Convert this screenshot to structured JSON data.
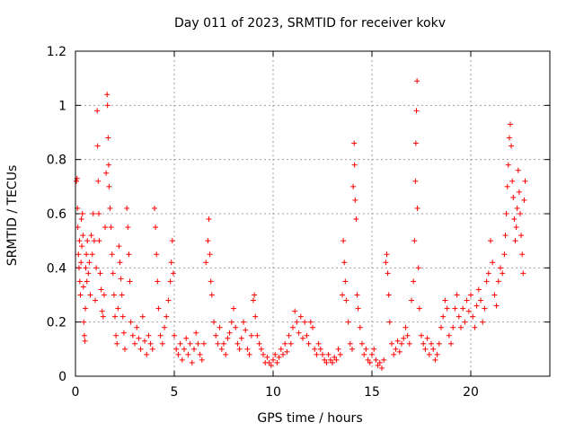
{
  "chart_data": {
    "type": "scatter",
    "title": "Day 011 of 2023, SRMTID for receiver kokv",
    "xlabel": "GPS time / hours",
    "ylabel": "SRMTID / TECUs",
    "xlim": [
      0,
      24
    ],
    "ylim": [
      0,
      1.2
    ],
    "xticks": [
      0,
      5,
      10,
      15,
      20
    ],
    "xtick_labels": [
      "0",
      "5",
      "10",
      "15",
      "20"
    ],
    "yticks": [
      0,
      0.2,
      0.4,
      0.6,
      0.8,
      1.0,
      1.2
    ],
    "ytick_labels": [
      "0",
      "0.2",
      "0.4",
      "0.6",
      "0.8",
      "1",
      "1.2"
    ],
    "grid": true,
    "marker": "+",
    "marker_color": "#ff0000",
    "series": [
      {
        "name": "kokv",
        "points": [
          [
            0.05,
            0.72
          ],
          [
            0.08,
            0.73
          ],
          [
            0.1,
            0.62
          ],
          [
            0.12,
            0.55
          ],
          [
            0.15,
            0.45
          ],
          [
            0.18,
            0.4
          ],
          [
            0.2,
            0.5
          ],
          [
            0.22,
            0.35
          ],
          [
            0.25,
            0.3
          ],
          [
            0.28,
            0.42
          ],
          [
            0.3,
            0.58
          ],
          [
            0.32,
            0.48
          ],
          [
            0.35,
            0.6
          ],
          [
            0.38,
            0.52
          ],
          [
            0.4,
            0.33
          ],
          [
            0.42,
            0.2
          ],
          [
            0.45,
            0.15
          ],
          [
            0.48,
            0.13
          ],
          [
            0.5,
            0.25
          ],
          [
            0.52,
            0.4
          ],
          [
            0.55,
            0.45
          ],
          [
            0.58,
            0.35
          ],
          [
            0.6,
            0.5
          ],
          [
            0.65,
            0.38
          ],
          [
            0.7,
            0.42
          ],
          [
            0.75,
            0.3
          ],
          [
            0.8,
            0.52
          ],
          [
            0.85,
            0.45
          ],
          [
            0.9,
            0.6
          ],
          [
            0.95,
            0.5
          ],
          [
            1.0,
            0.28
          ],
          [
            1.05,
            0.4
          ],
          [
            1.1,
            0.98
          ],
          [
            1.12,
            0.85
          ],
          [
            1.15,
            0.72
          ],
          [
            1.18,
            0.6
          ],
          [
            1.2,
            0.5
          ],
          [
            1.25,
            0.38
          ],
          [
            1.3,
            0.32
          ],
          [
            1.35,
            0.24
          ],
          [
            1.4,
            0.22
          ],
          [
            1.45,
            0.3
          ],
          [
            1.5,
            0.55
          ],
          [
            1.55,
            0.75
          ],
          [
            1.6,
            1.04
          ],
          [
            1.62,
            1.0
          ],
          [
            1.65,
            0.88
          ],
          [
            1.68,
            0.78
          ],
          [
            1.7,
            0.7
          ],
          [
            1.75,
            0.62
          ],
          [
            1.8,
            0.55
          ],
          [
            1.85,
            0.45
          ],
          [
            1.9,
            0.38
          ],
          [
            1.95,
            0.3
          ],
          [
            2.0,
            0.22
          ],
          [
            2.05,
            0.15
          ],
          [
            2.1,
            0.12
          ],
          [
            2.15,
            0.25
          ],
          [
            2.2,
            0.48
          ],
          [
            2.25,
            0.42
          ],
          [
            2.3,
            0.36
          ],
          [
            2.35,
            0.3
          ],
          [
            2.4,
            0.22
          ],
          [
            2.45,
            0.16
          ],
          [
            2.5,
            0.1
          ],
          [
            2.6,
            0.62
          ],
          [
            2.65,
            0.55
          ],
          [
            2.7,
            0.45
          ],
          [
            2.75,
            0.35
          ],
          [
            2.8,
            0.2
          ],
          [
            2.9,
            0.15
          ],
          [
            3.0,
            0.12
          ],
          [
            3.1,
            0.18
          ],
          [
            3.2,
            0.14
          ],
          [
            3.3,
            0.1
          ],
          [
            3.4,
            0.22
          ],
          [
            3.5,
            0.13
          ],
          [
            3.6,
            0.08
          ],
          [
            3.7,
            0.15
          ],
          [
            3.8,
            0.12
          ],
          [
            3.9,
            0.1
          ],
          [
            4.0,
            0.62
          ],
          [
            4.05,
            0.55
          ],
          [
            4.1,
            0.45
          ],
          [
            4.15,
            0.35
          ],
          [
            4.2,
            0.25
          ],
          [
            4.3,
            0.15
          ],
          [
            4.4,
            0.12
          ],
          [
            4.5,
            0.18
          ],
          [
            4.6,
            0.22
          ],
          [
            4.7,
            0.28
          ],
          [
            4.8,
            0.35
          ],
          [
            4.85,
            0.42
          ],
          [
            4.9,
            0.5
          ],
          [
            4.95,
            0.38
          ],
          [
            5.0,
            0.15
          ],
          [
            5.1,
            0.1
          ],
          [
            5.2,
            0.08
          ],
          [
            5.3,
            0.12
          ],
          [
            5.4,
            0.06
          ],
          [
            5.5,
            0.1
          ],
          [
            5.6,
            0.14
          ],
          [
            5.7,
            0.08
          ],
          [
            5.8,
            0.12
          ],
          [
            5.9,
            0.05
          ],
          [
            6.0,
            0.1
          ],
          [
            6.1,
            0.16
          ],
          [
            6.2,
            0.12
          ],
          [
            6.3,
            0.08
          ],
          [
            6.4,
            0.06
          ],
          [
            6.5,
            0.12
          ],
          [
            6.6,
            0.42
          ],
          [
            6.7,
            0.5
          ],
          [
            6.75,
            0.58
          ],
          [
            6.8,
            0.45
          ],
          [
            6.85,
            0.35
          ],
          [
            6.9,
            0.3
          ],
          [
            7.0,
            0.2
          ],
          [
            7.1,
            0.15
          ],
          [
            7.2,
            0.12
          ],
          [
            7.3,
            0.18
          ],
          [
            7.4,
            0.1
          ],
          [
            7.5,
            0.12
          ],
          [
            7.6,
            0.08
          ],
          [
            7.7,
            0.14
          ],
          [
            7.8,
            0.16
          ],
          [
            7.9,
            0.2
          ],
          [
            8.0,
            0.25
          ],
          [
            8.1,
            0.18
          ],
          [
            8.2,
            0.12
          ],
          [
            8.3,
            0.1
          ],
          [
            8.4,
            0.14
          ],
          [
            8.5,
            0.2
          ],
          [
            8.6,
            0.17
          ],
          [
            8.7,
            0.1
          ],
          [
            8.8,
            0.08
          ],
          [
            8.9,
            0.15
          ],
          [
            9.0,
            0.28
          ],
          [
            9.05,
            0.3
          ],
          [
            9.1,
            0.22
          ],
          [
            9.2,
            0.15
          ],
          [
            9.3,
            0.12
          ],
          [
            9.4,
            0.1
          ],
          [
            9.5,
            0.08
          ],
          [
            9.6,
            0.05
          ],
          [
            9.7,
            0.07
          ],
          [
            9.8,
            0.05
          ],
          [
            9.9,
            0.04
          ],
          [
            10.0,
            0.06
          ],
          [
            10.1,
            0.08
          ],
          [
            10.2,
            0.05
          ],
          [
            10.3,
            0.07
          ],
          [
            10.4,
            0.1
          ],
          [
            10.5,
            0.08
          ],
          [
            10.6,
            0.12
          ],
          [
            10.7,
            0.09
          ],
          [
            10.8,
            0.15
          ],
          [
            10.9,
            0.12
          ],
          [
            11.0,
            0.18
          ],
          [
            11.1,
            0.24
          ],
          [
            11.2,
            0.2
          ],
          [
            11.3,
            0.16
          ],
          [
            11.4,
            0.22
          ],
          [
            11.5,
            0.14
          ],
          [
            11.6,
            0.2
          ],
          [
            11.7,
            0.15
          ],
          [
            11.8,
            0.12
          ],
          [
            11.9,
            0.2
          ],
          [
            12.0,
            0.18
          ],
          [
            12.1,
            0.1
          ],
          [
            12.2,
            0.08
          ],
          [
            12.3,
            0.12
          ],
          [
            12.4,
            0.1
          ],
          [
            12.5,
            0.08
          ],
          [
            12.6,
            0.06
          ],
          [
            12.7,
            0.05
          ],
          [
            12.8,
            0.08
          ],
          [
            12.9,
            0.06
          ],
          [
            13.0,
            0.05
          ],
          [
            13.1,
            0.07
          ],
          [
            13.2,
            0.06
          ],
          [
            13.3,
            0.1
          ],
          [
            13.4,
            0.08
          ],
          [
            13.5,
            0.3
          ],
          [
            13.55,
            0.5
          ],
          [
            13.6,
            0.42
          ],
          [
            13.65,
            0.35
          ],
          [
            13.7,
            0.28
          ],
          [
            13.8,
            0.2
          ],
          [
            13.9,
            0.12
          ],
          [
            14.0,
            0.1
          ],
          [
            14.05,
            0.7
          ],
          [
            14.1,
            0.86
          ],
          [
            14.12,
            0.78
          ],
          [
            14.15,
            0.65
          ],
          [
            14.2,
            0.58
          ],
          [
            14.25,
            0.3
          ],
          [
            14.3,
            0.25
          ],
          [
            14.4,
            0.18
          ],
          [
            14.5,
            0.12
          ],
          [
            14.6,
            0.08
          ],
          [
            14.7,
            0.1
          ],
          [
            14.8,
            0.06
          ],
          [
            14.9,
            0.05
          ],
          [
            15.0,
            0.08
          ],
          [
            15.1,
            0.1
          ],
          [
            15.2,
            0.06
          ],
          [
            15.3,
            0.04
          ],
          [
            15.4,
            0.05
          ],
          [
            15.5,
            0.03
          ],
          [
            15.6,
            0.06
          ],
          [
            15.7,
            0.42
          ],
          [
            15.75,
            0.45
          ],
          [
            15.8,
            0.38
          ],
          [
            15.85,
            0.3
          ],
          [
            15.9,
            0.2
          ],
          [
            16.0,
            0.12
          ],
          [
            16.1,
            0.08
          ],
          [
            16.2,
            0.1
          ],
          [
            16.3,
            0.13
          ],
          [
            16.4,
            0.09
          ],
          [
            16.5,
            0.12
          ],
          [
            16.6,
            0.14
          ],
          [
            16.7,
            0.18
          ],
          [
            16.8,
            0.15
          ],
          [
            16.9,
            0.12
          ],
          [
            17.0,
            0.28
          ],
          [
            17.1,
            0.35
          ],
          [
            17.15,
            0.5
          ],
          [
            17.2,
            0.72
          ],
          [
            17.22,
            0.86
          ],
          [
            17.25,
            0.98
          ],
          [
            17.28,
            1.09
          ],
          [
            17.3,
            0.62
          ],
          [
            17.35,
            0.4
          ],
          [
            17.4,
            0.25
          ],
          [
            17.5,
            0.15
          ],
          [
            17.6,
            0.12
          ],
          [
            17.7,
            0.1
          ],
          [
            17.8,
            0.14
          ],
          [
            17.9,
            0.08
          ],
          [
            18.0,
            0.12
          ],
          [
            18.1,
            0.1
          ],
          [
            18.2,
            0.06
          ],
          [
            18.3,
            0.08
          ],
          [
            18.4,
            0.12
          ],
          [
            18.5,
            0.18
          ],
          [
            18.6,
            0.22
          ],
          [
            18.7,
            0.28
          ],
          [
            18.8,
            0.25
          ],
          [
            18.9,
            0.15
          ],
          [
            19.0,
            0.12
          ],
          [
            19.1,
            0.18
          ],
          [
            19.2,
            0.25
          ],
          [
            19.3,
            0.3
          ],
          [
            19.4,
            0.22
          ],
          [
            19.5,
            0.18
          ],
          [
            19.6,
            0.25
          ],
          [
            19.7,
            0.2
          ],
          [
            19.8,
            0.28
          ],
          [
            19.9,
            0.24
          ],
          [
            20.0,
            0.3
          ],
          [
            20.1,
            0.22
          ],
          [
            20.2,
            0.18
          ],
          [
            20.3,
            0.26
          ],
          [
            20.4,
            0.32
          ],
          [
            20.5,
            0.28
          ],
          [
            20.6,
            0.2
          ],
          [
            20.7,
            0.25
          ],
          [
            20.8,
            0.35
          ],
          [
            20.9,
            0.38
          ],
          [
            21.0,
            0.5
          ],
          [
            21.1,
            0.42
          ],
          [
            21.2,
            0.3
          ],
          [
            21.3,
            0.26
          ],
          [
            21.4,
            0.35
          ],
          [
            21.5,
            0.4
          ],
          [
            21.6,
            0.38
          ],
          [
            21.7,
            0.45
          ],
          [
            21.75,
            0.52
          ],
          [
            21.8,
            0.6
          ],
          [
            21.85,
            0.7
          ],
          [
            21.9,
            0.78
          ],
          [
            21.95,
            0.88
          ],
          [
            22.0,
            0.93
          ],
          [
            22.05,
            0.85
          ],
          [
            22.1,
            0.72
          ],
          [
            22.15,
            0.66
          ],
          [
            22.2,
            0.58
          ],
          [
            22.25,
            0.5
          ],
          [
            22.3,
            0.55
          ],
          [
            22.35,
            0.62
          ],
          [
            22.4,
            0.76
          ],
          [
            22.45,
            0.68
          ],
          [
            22.5,
            0.6
          ],
          [
            22.55,
            0.52
          ],
          [
            22.6,
            0.45
          ],
          [
            22.65,
            0.38
          ],
          [
            22.7,
            0.65
          ],
          [
            22.75,
            0.72
          ]
        ]
      }
    ]
  }
}
